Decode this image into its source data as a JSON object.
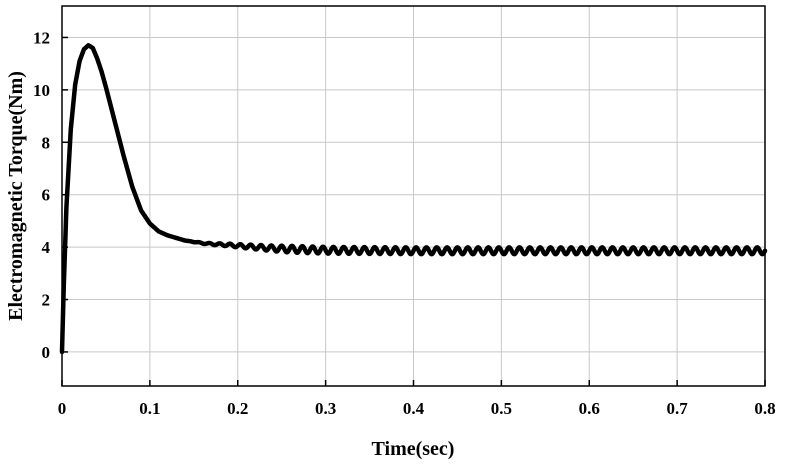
{
  "chart_data": {
    "type": "line",
    "title": "",
    "xlabel": "Time(sec)",
    "ylabel": "Electromagnetic Torque(Nm)",
    "xlim": [
      0,
      0.8
    ],
    "ylim": [
      -1.3,
      13.2
    ],
    "xticks": [
      0,
      0.1,
      0.2,
      0.3,
      0.4,
      0.5,
      0.6,
      0.7,
      0.8
    ],
    "xtick_labels": [
      "0",
      "0.1",
      "0.2",
      "0.3",
      "0.4",
      "0.5",
      "0.6",
      "0.7",
      "0.8"
    ],
    "yticks": [
      0,
      2,
      4,
      6,
      8,
      10,
      12
    ],
    "ytick_labels": [
      "0",
      "2",
      "4",
      "6",
      "8",
      "10",
      "12"
    ],
    "grid": true,
    "legend": "none",
    "line_color": "#000000",
    "series": [
      {
        "x": [
          0,
          0.002,
          0.005,
          0.01,
          0.015,
          0.02,
          0.025,
          0.03,
          0.035,
          0.04,
          0.045,
          0.05,
          0.06,
          0.07,
          0.08,
          0.09,
          0.1,
          0.11,
          0.12,
          0.13,
          0.14,
          0.15,
          0.16,
          0.17,
          0.18,
          0.19,
          0.2,
          0.22,
          0.24,
          0.26,
          0.28,
          0.3,
          0.35,
          0.4,
          0.45,
          0.5,
          0.55,
          0.6,
          0.65,
          0.7,
          0.75,
          0.8
        ],
        "y": [
          0,
          2.5,
          5.5,
          8.5,
          10.2,
          11.1,
          11.55,
          11.7,
          11.6,
          11.2,
          10.7,
          10.1,
          8.8,
          7.5,
          6.3,
          5.4,
          4.9,
          4.6,
          4.45,
          4.35,
          4.25,
          4.2,
          4.15,
          4.12,
          4.1,
          4.08,
          4.05,
          4.0,
          3.95,
          3.92,
          3.9,
          3.88,
          3.87,
          3.86,
          3.86,
          3.86,
          3.86,
          3.86,
          3.86,
          3.86,
          3.86,
          3.86
        ],
        "oscillation_amplitude": 0.13,
        "oscillation_frequency_hz": 85
      }
    ]
  }
}
